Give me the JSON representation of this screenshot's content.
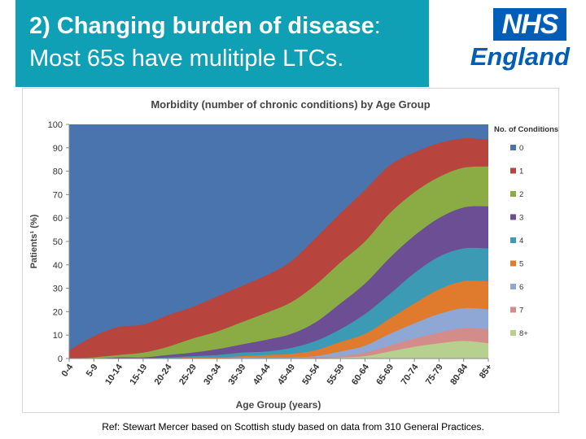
{
  "slide": {
    "title_bold": "2) Changing burden of disease",
    "title_colon": ":",
    "title_line2": "Most 65s have mulitiple LTCs.",
    "reference": "Ref: Stewart Mercer based on Scottish study based on data from 310 General Practices.",
    "title_bg_color": "#0fa0b6"
  },
  "logo": {
    "badge": "NHS",
    "word": "England",
    "color": "#005eb8"
  },
  "chart_data": {
    "type": "area",
    "stacked": true,
    "title": "Morbidity (number of chronic conditions) by Age Group",
    "xlabel": "Age Group (years)",
    "ylabel": "Patients¹ (%)",
    "ylim": [
      0,
      100
    ],
    "yticks": [
      0,
      10,
      20,
      30,
      40,
      50,
      60,
      70,
      80,
      90,
      100
    ],
    "legend_title": "No. of Conditions",
    "legend_position": "right",
    "grid": false,
    "categories": [
      "0-4",
      "5-9",
      "10-14",
      "15-19",
      "20-24",
      "25-29",
      "30-34",
      "35-39",
      "40-44",
      "45-49",
      "50-54",
      "55-59",
      "60-64",
      "65-69",
      "70-74",
      "75-79",
      "80-84",
      "85+"
    ],
    "series": [
      {
        "name": "0",
        "color": "#4a74ad",
        "values": [
          96.5,
          90.5,
          86.5,
          85.5,
          81.5,
          78,
          73.5,
          69,
          64.5,
          58.5,
          48.5,
          38,
          28,
          17.5,
          12,
          8,
          6,
          6.5
        ]
      },
      {
        "name": "1",
        "color": "#b8443e",
        "values": [
          3.5,
          9,
          12,
          12,
          13.5,
          13.5,
          15,
          15.5,
          16,
          17.5,
          20,
          21,
          22,
          20.5,
          17,
          14.5,
          12.5,
          11.5
        ]
      },
      {
        "name": "2",
        "color": "#8bac44",
        "values": [
          0,
          0.5,
          1,
          2,
          3.5,
          6,
          7.5,
          9.5,
          11.5,
          13.5,
          16,
          17.5,
          18,
          19,
          18.5,
          17.5,
          17,
          17
        ]
      },
      {
        "name": "3",
        "color": "#6b4e93",
        "values": [
          0,
          0,
          0.5,
          0.5,
          1,
          1.5,
          2.5,
          3.5,
          5,
          6,
          8,
          11,
          13,
          15.5,
          16,
          16.5,
          17.5,
          18
        ]
      },
      {
        "name": "4",
        "color": "#3d9ab4",
        "values": [
          0,
          0,
          0,
          0,
          0.5,
          0.5,
          1,
          1.5,
          1.5,
          2.5,
          4,
          5.5,
          8.5,
          10.5,
          13,
          14,
          14,
          14
        ]
      },
      {
        "name": "5",
        "color": "#e07b2e",
        "values": [
          0,
          0,
          0,
          0,
          0,
          0.5,
          0.5,
          0.5,
          1,
          1.5,
          2.5,
          4,
          5,
          6.5,
          8.5,
          10.5,
          11.5,
          12
        ]
      },
      {
        "name": "6",
        "color": "#8fa7d4",
        "values": [
          0,
          0,
          0,
          0,
          0,
          0,
          0,
          0.5,
          0.5,
          0.5,
          0.5,
          2,
          3,
          5,
          6.5,
          8,
          8.5,
          8.5
        ]
      },
      {
        "name": "7",
        "color": "#d48c8a",
        "values": [
          0,
          0,
          0,
          0,
          0,
          0,
          0,
          0,
          0,
          0,
          0.5,
          0.5,
          1.5,
          2.5,
          3.5,
          4.5,
          5.5,
          6
        ]
      },
      {
        "name": "8+",
        "color": "#b7cf8f",
        "values": [
          0,
          0,
          0,
          0,
          0,
          0,
          0,
          0,
          0,
          0,
          0,
          0.5,
          1,
          3,
          5,
          6.5,
          7.5,
          6.5
        ]
      }
    ]
  }
}
